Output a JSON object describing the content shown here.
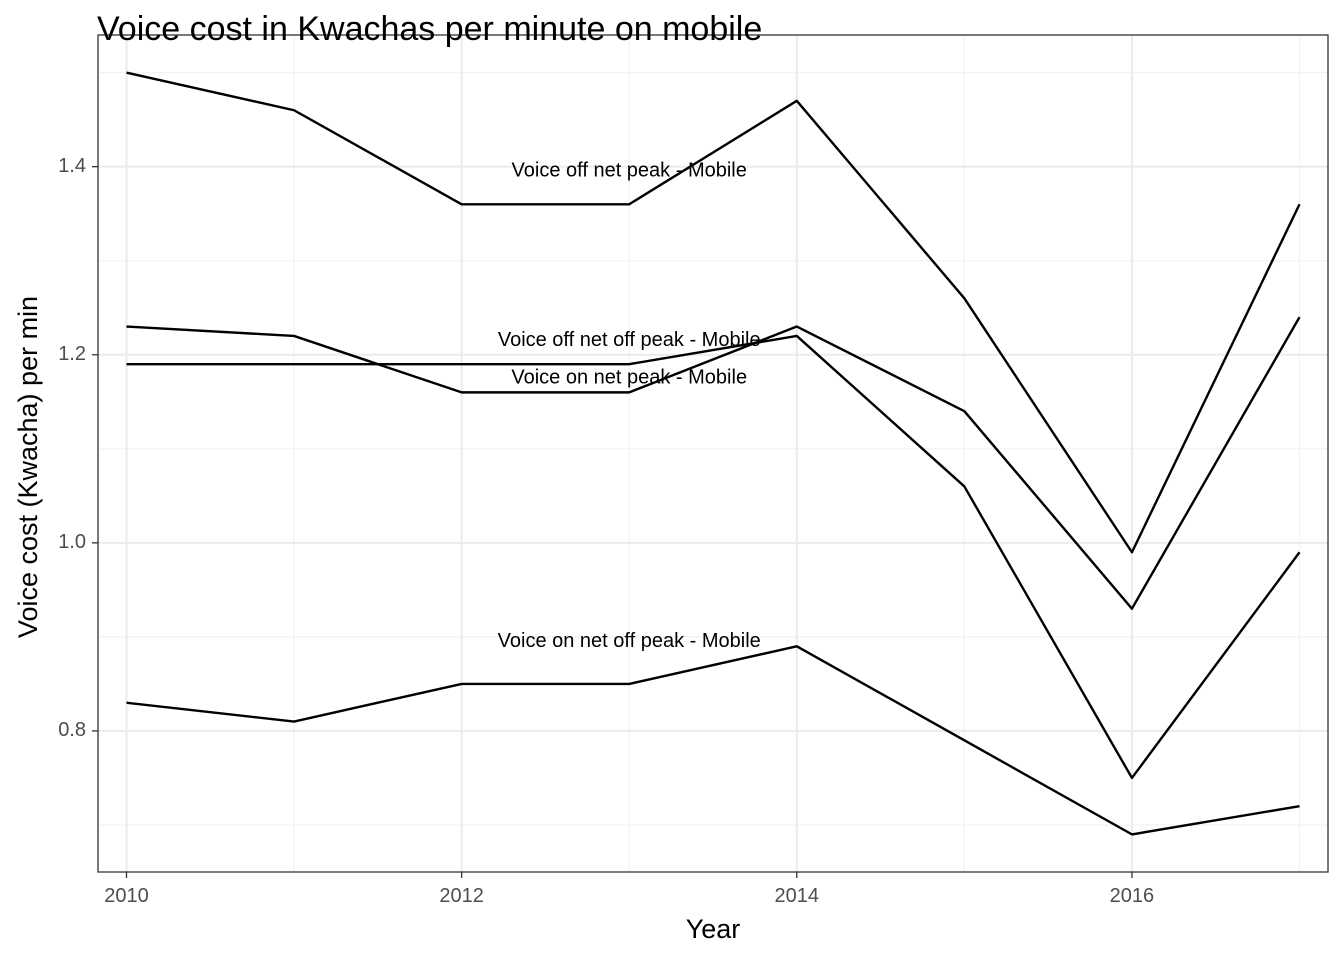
{
  "chart_data": {
    "type": "line",
    "title": "Voice cost in Kwachas per minute on mobile",
    "xlabel": "Year",
    "ylabel": "Voice cost (Kwacha) per min",
    "x": [
      2010,
      2011,
      2012,
      2013,
      2014,
      2015,
      2016,
      2017
    ],
    "xlim": [
      2009.83,
      2017.17
    ],
    "ylim": [
      0.65,
      1.54
    ],
    "x_ticks": [
      2010,
      2012,
      2014,
      2016
    ],
    "y_ticks": [
      0.8,
      1.0,
      1.2,
      1.4
    ],
    "x_tick_labels": [
      "2010",
      "2012",
      "2014",
      "2016"
    ],
    "y_tick_labels": [
      "0.8",
      "1.0",
      "1.2",
      "1.4"
    ],
    "grid": true,
    "legend": "none",
    "line_color": "#000000",
    "series": [
      {
        "name": "Voice off net peak - Mobile",
        "values": [
          1.5,
          1.46,
          1.36,
          1.36,
          1.47,
          1.26,
          0.99,
          1.36
        ],
        "label_at": [
          2013,
          1.395
        ]
      },
      {
        "name": "Voice off net off peak - Mobile",
        "values": [
          1.23,
          1.22,
          1.16,
          1.16,
          1.23,
          1.14,
          0.93,
          1.24
        ],
        "label_at": [
          2013,
          1.215
        ]
      },
      {
        "name": "Voice on net peak - Mobile",
        "values": [
          1.19,
          1.19,
          1.19,
          1.19,
          1.22,
          1.06,
          0.75,
          0.99
        ],
        "label_at": [
          2013,
          1.175
        ]
      },
      {
        "name": "Voice on net off peak - Mobile",
        "values": [
          0.83,
          0.81,
          0.85,
          0.85,
          0.89,
          0.79,
          0.69,
          0.72
        ],
        "label_at": [
          2013,
          0.895
        ]
      }
    ]
  }
}
